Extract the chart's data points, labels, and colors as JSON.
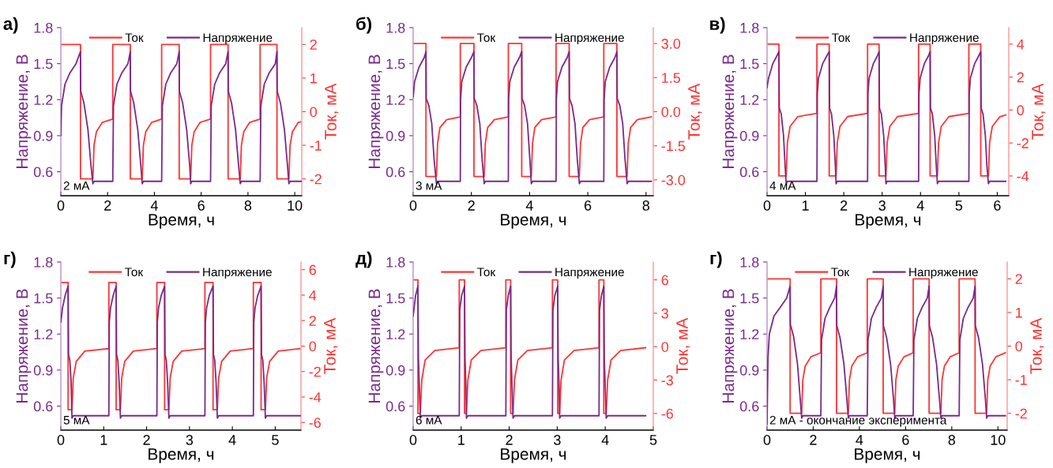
{
  "chart_data": [
    {
      "type": "line",
      "title": "а)",
      "xlabel": "Время, ч",
      "ylabel": "Напряжение, В",
      "y2label": "Ток, мА",
      "legend": "top",
      "annotations": [
        "2 мА"
      ],
      "xlim": [
        0,
        10.3
      ],
      "xticks": [
        0,
        2,
        4,
        6,
        8,
        10
      ],
      "ylim": [
        0.4,
        1.8
      ],
      "yticks": [
        0.6,
        0.9,
        1.2,
        1.5,
        1.8
      ],
      "y2lim": [
        -2.5,
        2.5
      ],
      "y2ticks": [
        -2,
        -1,
        0,
        1,
        2
      ],
      "series": [
        {
          "name": "Ток",
          "color": "#ff3333",
          "axis": "y2",
          "x": [
            0,
            0.84,
            0.84,
            1.37,
            1.42,
            1.52,
            1.77,
            2.22,
            2.22,
            2.97,
            2.97,
            3.48,
            3.53,
            3.63,
            3.88,
            4.31,
            4.31,
            5.06,
            5.06,
            5.55,
            5.6,
            5.7,
            5.95,
            6.4,
            6.4,
            7.15,
            7.15,
            7.67,
            7.72,
            7.82,
            8.07,
            8.52,
            8.52,
            9.24,
            9.24,
            9.75,
            9.8,
            9.9,
            10.15,
            10.28
          ],
          "values": [
            2,
            2,
            -2,
            -2,
            -1.0,
            -0.6,
            -0.32,
            -0.22,
            2,
            2,
            -2,
            -2,
            -1.0,
            -0.6,
            -0.32,
            -0.22,
            2,
            2,
            -2,
            -2,
            -1.0,
            -0.6,
            -0.32,
            -0.22,
            2,
            2,
            -2,
            -2,
            -1.0,
            -0.6,
            -0.32,
            -0.22,
            2,
            2,
            -2,
            -2,
            -1.0,
            -0.6,
            -0.32,
            -0.3
          ]
        },
        {
          "name": "Напряжение",
          "color": "#7a2a8a",
          "x": [
            0,
            0.03,
            0.18,
            0.38,
            0.65,
            0.84,
            0.85,
            0.99,
            1.16,
            1.29,
            1.37,
            1.42,
            2.22,
            2.25,
            2.4,
            2.6,
            2.87,
            2.97,
            2.98,
            3.12,
            3.29,
            3.42,
            3.48,
            3.53,
            4.31,
            4.34,
            4.49,
            4.69,
            4.96,
            5.06,
            5.07,
            5.21,
            5.38,
            5.51,
            5.55,
            5.6,
            6.4,
            6.43,
            6.58,
            6.78,
            7.05,
            7.15,
            7.16,
            7.3,
            7.47,
            7.6,
            7.67,
            7.72,
            8.52,
            8.55,
            8.7,
            8.9,
            9.17,
            9.24,
            9.25,
            9.39,
            9.56,
            9.69,
            9.75,
            9.8,
            10.28
          ],
          "values": [
            0.9,
            1.15,
            1.33,
            1.42,
            1.5,
            1.6,
            1.27,
            1.17,
            0.95,
            0.65,
            0.5,
            0.52,
            0.52,
            1.15,
            1.33,
            1.42,
            1.5,
            1.6,
            1.27,
            1.17,
            0.95,
            0.65,
            0.5,
            0.52,
            0.52,
            1.15,
            1.33,
            1.42,
            1.5,
            1.6,
            1.27,
            1.17,
            0.95,
            0.65,
            0.5,
            0.52,
            0.52,
            1.15,
            1.33,
            1.42,
            1.5,
            1.6,
            1.27,
            1.17,
            0.95,
            0.65,
            0.5,
            0.52,
            0.52,
            1.15,
            1.33,
            1.42,
            1.5,
            1.6,
            1.27,
            1.17,
            0.95,
            0.65,
            0.5,
            0.52,
            0.52
          ]
        }
      ]
    },
    {
      "type": "line",
      "title": "б)",
      "xlabel": "Время, ч",
      "ylabel": "Напряжение, В",
      "y2label": "Ток, мА",
      "legend": "top",
      "annotations": [
        "3 мА"
      ],
      "xlim": [
        0,
        8.25
      ],
      "xticks": [
        0,
        2,
        4,
        6,
        8
      ],
      "ylim": [
        0.4,
        1.8
      ],
      "yticks": [
        0.6,
        0.9,
        1.2,
        1.5,
        1.8
      ],
      "y2lim": [
        -3.7,
        3.7
      ],
      "y2ticks": [
        {
          "value": -3,
          "label": "-3.0"
        },
        {
          "value": -1.5,
          "label": "-1.5"
        },
        {
          "value": 0,
          "label": "0.0"
        },
        {
          "value": 1.5,
          "label": "1.5"
        },
        {
          "value": 3,
          "label": "3.0"
        }
      ],
      "series": [
        {
          "name": "Ток",
          "color": "#ff3333",
          "axis": "y2",
          "x": [
            0,
            0.44,
            0.44,
            0.8,
            0.84,
            0.92,
            1.15,
            1.62,
            1.62,
            2.09,
            2.09,
            2.44,
            2.48,
            2.56,
            2.79,
            3.27,
            3.27,
            3.73,
            3.73,
            4.06,
            4.1,
            4.18,
            4.41,
            4.91,
            4.91,
            5.36,
            5.36,
            5.71,
            5.75,
            5.83,
            6.06,
            6.55,
            6.55,
            7.0,
            7.0,
            7.35,
            7.39,
            7.47,
            7.7,
            8.18
          ],
          "values": [
            3.0,
            3.0,
            -2.85,
            -2.85,
            -1.4,
            -0.7,
            -0.35,
            -0.23,
            3.0,
            3.0,
            -2.85,
            -2.85,
            -1.4,
            -0.7,
            -0.35,
            -0.23,
            3.0,
            3.0,
            -2.85,
            -2.85,
            -1.4,
            -0.7,
            -0.35,
            -0.23,
            3.0,
            3.0,
            -2.85,
            -2.85,
            -1.4,
            -0.7,
            -0.35,
            -0.23,
            3.0,
            3.0,
            -2.85,
            -2.85,
            -1.4,
            -0.7,
            -0.35,
            -0.23
          ]
        },
        {
          "name": "Напряжение",
          "color": "#7a2a8a",
          "x": [
            0,
            0.05,
            0.2,
            0.38,
            0.44,
            0.45,
            0.54,
            0.64,
            0.72,
            0.8,
            0.84,
            1.62,
            1.63,
            1.67,
            1.82,
            2.0,
            2.09,
            2.1,
            2.19,
            2.29,
            2.37,
            2.44,
            2.48,
            3.27,
            3.28,
            3.32,
            3.47,
            3.65,
            3.73,
            3.74,
            3.83,
            3.93,
            4.01,
            4.06,
            4.1,
            4.91,
            4.92,
            4.96,
            5.11,
            5.29,
            5.36,
            5.37,
            5.46,
            5.56,
            5.64,
            5.71,
            5.75,
            6.55,
            6.56,
            6.6,
            6.75,
            6.93,
            7.0,
            7.01,
            7.1,
            7.2,
            7.28,
            7.35,
            7.39,
            8.18
          ],
          "values": [
            1.22,
            1.35,
            1.47,
            1.55,
            1.6,
            1.21,
            1.15,
            1.0,
            0.7,
            0.5,
            0.52,
            0.52,
            1.2,
            1.35,
            1.47,
            1.55,
            1.6,
            1.21,
            1.15,
            1.0,
            0.7,
            0.5,
            0.52,
            0.52,
            1.2,
            1.35,
            1.47,
            1.55,
            1.6,
            1.21,
            1.15,
            1.0,
            0.7,
            0.5,
            0.52,
            0.52,
            1.2,
            1.35,
            1.47,
            1.55,
            1.6,
            1.21,
            1.15,
            1.0,
            0.7,
            0.5,
            0.52,
            0.52,
            1.2,
            1.35,
            1.47,
            1.55,
            1.6,
            1.21,
            1.15,
            1.0,
            0.7,
            0.5,
            0.52,
            0.52
          ]
        }
      ]
    },
    {
      "type": "line",
      "title": "в)",
      "xlabel": "Время, ч",
      "ylabel": "Напряжение, В",
      "y2label": "Ток, мА",
      "legend": "top",
      "annotations": [
        "4 мА"
      ],
      "xlim": [
        0,
        6.3
      ],
      "xticks": [
        0,
        1,
        2,
        3,
        4,
        5,
        6
      ],
      "ylim": [
        0.4,
        1.8
      ],
      "yticks": [
        0.6,
        0.9,
        1.2,
        1.5,
        1.8
      ],
      "y2lim": [
        -5.2,
        5
      ],
      "y2ticks": [
        -4,
        -2,
        0,
        2,
        4
      ],
      "series": [
        {
          "name": "Ток",
          "color": "#ff3333",
          "axis": "y2",
          "x": [
            0,
            0.31,
            0.31,
            0.5,
            0.53,
            0.6,
            0.8,
            1.3,
            1.3,
            1.62,
            1.62,
            1.8,
            1.83,
            1.9,
            2.1,
            2.62,
            2.62,
            2.92,
            2.92,
            3.1,
            3.13,
            3.2,
            3.4,
            3.95,
            3.95,
            4.25,
            4.25,
            4.44,
            4.47,
            4.54,
            4.74,
            5.26,
            5.26,
            5.57,
            5.57,
            5.77,
            5.8,
            5.87,
            6.07,
            6.22
          ],
          "values": [
            4,
            4,
            -4,
            -4,
            -2.0,
            -1.0,
            -0.4,
            -0.2,
            4,
            4,
            -4,
            -4,
            -2.0,
            -1.0,
            -0.4,
            -0.2,
            4,
            4,
            -4,
            -4,
            -2.0,
            -1.0,
            -0.4,
            -0.2,
            4,
            4,
            -4,
            -4,
            -2.0,
            -1.0,
            -0.4,
            -0.2,
            4,
            4,
            -4,
            -4,
            -2.0,
            -1.0,
            -0.4,
            -0.3
          ]
        },
        {
          "name": "Напряжение",
          "color": "#7a2a8a",
          "x": [
            0,
            0.04,
            0.15,
            0.25,
            0.31,
            0.32,
            0.37,
            0.43,
            0.47,
            0.5,
            0.53,
            1.3,
            1.31,
            1.34,
            1.45,
            1.55,
            1.62,
            1.63,
            1.68,
            1.74,
            1.78,
            1.8,
            1.83,
            2.62,
            2.63,
            2.66,
            2.77,
            2.87,
            2.92,
            2.93,
            2.98,
            3.04,
            3.08,
            3.1,
            3.13,
            3.95,
            3.96,
            3.99,
            4.1,
            4.2,
            4.25,
            4.26,
            4.31,
            4.37,
            4.41,
            4.44,
            4.47,
            5.26,
            5.27,
            5.3,
            5.41,
            5.51,
            5.57,
            5.58,
            5.63,
            5.69,
            5.73,
            5.77,
            5.8,
            6.22
          ],
          "values": [
            1.3,
            1.38,
            1.5,
            1.56,
            1.6,
            1.13,
            1.08,
            0.9,
            0.65,
            0.5,
            0.52,
            0.52,
            1.25,
            1.38,
            1.5,
            1.56,
            1.6,
            1.13,
            1.08,
            0.9,
            0.65,
            0.5,
            0.52,
            0.52,
            1.25,
            1.38,
            1.5,
            1.56,
            1.6,
            1.13,
            1.08,
            0.9,
            0.65,
            0.5,
            0.52,
            0.52,
            1.25,
            1.38,
            1.5,
            1.56,
            1.6,
            1.13,
            1.08,
            0.9,
            0.65,
            0.5,
            0.52,
            0.52,
            1.25,
            1.38,
            1.5,
            1.56,
            1.6,
            1.13,
            1.08,
            0.9,
            0.65,
            0.5,
            0.52,
            0.52
          ]
        }
      ]
    },
    {
      "type": "line",
      "title": "г)",
      "xlabel": "Время, ч",
      "ylabel": "Напряжение, В",
      "y2label": "Ток, мА",
      "legend": "top",
      "annotations": [
        "5 мА"
      ],
      "xlim": [
        0,
        5.6
      ],
      "xticks": [
        0,
        1,
        2,
        3,
        4,
        5
      ],
      "ylim": [
        0.4,
        1.8
      ],
      "yticks": [
        0.6,
        0.9,
        1.2,
        1.5,
        1.8
      ],
      "y2lim": [
        -6.6,
        6.6
      ],
      "y2ticks": [
        -6,
        -4,
        -2,
        0,
        2,
        4,
        6
      ],
      "series": [
        {
          "name": "Ток",
          "color": "#ff3333",
          "axis": "y2",
          "x": [
            0,
            0.17,
            0.17,
            0.26,
            0.29,
            0.36,
            0.56,
            1.12,
            1.12,
            1.29,
            1.29,
            1.39,
            1.42,
            1.49,
            1.69,
            2.24,
            2.24,
            2.42,
            2.42,
            2.52,
            2.55,
            2.62,
            2.82,
            3.36,
            3.36,
            3.55,
            3.55,
            3.65,
            3.68,
            3.75,
            3.95,
            4.49,
            4.49,
            4.67,
            4.67,
            4.77,
            4.8,
            4.87,
            5.07,
            5.58
          ],
          "values": [
            5,
            5,
            -5,
            -5,
            -2.5,
            -1.2,
            -0.4,
            -0.2,
            5,
            5,
            -5,
            -5,
            -2.5,
            -1.2,
            -0.4,
            -0.2,
            5,
            5,
            -5,
            -5,
            -2.5,
            -1.2,
            -0.4,
            -0.2,
            5,
            5,
            -5,
            -5,
            -2.5,
            -1.2,
            -0.4,
            -0.2,
            5,
            5,
            -5,
            -5,
            -2.5,
            -1.2,
            -0.4,
            -0.2
          ]
        },
        {
          "name": "Напряжение",
          "color": "#7a2a8a",
          "x": [
            0,
            0.04,
            0.1,
            0.17,
            0.18,
            0.21,
            0.24,
            0.26,
            0.29,
            1.12,
            1.13,
            1.16,
            1.22,
            1.29,
            1.3,
            1.33,
            1.36,
            1.39,
            1.42,
            2.24,
            2.25,
            2.28,
            2.34,
            2.42,
            2.43,
            2.46,
            2.49,
            2.52,
            2.55,
            3.36,
            3.37,
            3.4,
            3.46,
            3.55,
            3.56,
            3.59,
            3.62,
            3.65,
            3.68,
            4.49,
            4.5,
            4.53,
            4.59,
            4.67,
            4.68,
            4.71,
            4.74,
            4.77,
            4.8,
            5.58
          ],
          "values": [
            1.3,
            1.42,
            1.52,
            1.6,
            1.03,
            0.98,
            0.8,
            0.5,
            0.52,
            0.52,
            1.3,
            1.42,
            1.52,
            1.6,
            1.03,
            0.98,
            0.8,
            0.5,
            0.52,
            0.52,
            1.3,
            1.42,
            1.52,
            1.6,
            1.03,
            0.98,
            0.8,
            0.5,
            0.52,
            0.52,
            1.3,
            1.42,
            1.52,
            1.6,
            1.03,
            0.98,
            0.8,
            0.5,
            0.52,
            0.52,
            1.3,
            1.42,
            1.52,
            1.6,
            1.03,
            0.98,
            0.8,
            0.5,
            0.52,
            0.52
          ]
        }
      ]
    },
    {
      "type": "line",
      "title": "д)",
      "xlabel": "Время, ч",
      "ylabel": "Напряжение, В",
      "y2label": "Ток, мА",
      "legend": "top",
      "annotations": [
        "6 мА"
      ],
      "xlim": [
        0,
        5
      ],
      "xticks": [
        0,
        1,
        2,
        3,
        4,
        5
      ],
      "ylim": [
        0.4,
        1.8
      ],
      "yticks": [
        0.6,
        0.9,
        1.2,
        1.5,
        1.8
      ],
      "y2lim": [
        -7.5,
        7.6
      ],
      "y2ticks": [
        -6,
        -3,
        0,
        3,
        6
      ],
      "series": [
        {
          "name": "Ток",
          "color": "#ff3333",
          "axis": "y2",
          "x": [
            0,
            0.1,
            0.1,
            0.15,
            0.18,
            0.25,
            0.45,
            0.96,
            0.96,
            1.07,
            1.07,
            1.11,
            1.14,
            1.21,
            1.41,
            1.93,
            1.93,
            2.03,
            2.03,
            2.08,
            2.11,
            2.18,
            2.38,
            2.9,
            2.9,
            3.01,
            3.01,
            3.05,
            3.08,
            3.15,
            3.35,
            3.87,
            3.87,
            3.97,
            3.97,
            4.02,
            4.05,
            4.12,
            4.32,
            4.84
          ],
          "values": [
            6,
            6,
            -6,
            -6,
            -3.0,
            -1.2,
            -0.35,
            -0.1,
            6,
            6,
            -6,
            -6,
            -3.0,
            -1.2,
            -0.35,
            -0.1,
            6,
            6,
            -6,
            -6,
            -3.0,
            -1.2,
            -0.35,
            -0.1,
            6,
            6,
            -6,
            -6,
            -3.0,
            -1.2,
            -0.35,
            -0.1,
            6,
            6,
            -6,
            -6,
            -3.0,
            -1.2,
            -0.35,
            -0.1
          ]
        },
        {
          "name": "Напряжение",
          "color": "#7a2a8a",
          "x": [
            0,
            0.05,
            0.1,
            0.11,
            0.13,
            0.15,
            0.18,
            0.96,
            0.97,
            1.01,
            1.07,
            1.08,
            1.1,
            1.11,
            1.14,
            1.93,
            1.94,
            1.98,
            2.03,
            2.04,
            2.06,
            2.08,
            2.11,
            2.9,
            2.91,
            2.95,
            3.01,
            3.02,
            3.04,
            3.05,
            3.08,
            3.87,
            3.88,
            3.92,
            3.97,
            3.98,
            4.0,
            4.02,
            4.05,
            4.84
          ],
          "values": [
            1.35,
            1.52,
            1.6,
            1.0,
            0.75,
            0.5,
            0.52,
            0.52,
            1.4,
            1.52,
            1.6,
            1.0,
            0.75,
            0.5,
            0.52,
            0.52,
            1.4,
            1.52,
            1.6,
            1.0,
            0.75,
            0.5,
            0.52,
            0.52,
            1.4,
            1.52,
            1.6,
            1.0,
            0.75,
            0.5,
            0.52,
            0.52,
            1.4,
            1.52,
            1.6,
            1.0,
            0.75,
            0.5,
            0.52,
            0.52
          ]
        }
      ]
    },
    {
      "type": "line",
      "title": "г)",
      "xlabel": "Время, ч",
      "ylabel": "Напряжение, В",
      "y2label": "Ток, мА",
      "legend": "top",
      "annotations": [
        "2 мА - окончание эксперимента"
      ],
      "xlim": [
        0,
        10.4
      ],
      "xticks": [
        0,
        2,
        4,
        6,
        8,
        10
      ],
      "ylim": [
        0.4,
        1.8
      ],
      "yticks": [
        0.6,
        0.9,
        1.2,
        1.5,
        1.8
      ],
      "y2lim": [
        -2.5,
        2.5
      ],
      "y2ticks": [
        -2,
        -1,
        0,
        1,
        2
      ],
      "series": [
        {
          "name": "Ток",
          "color": "#ff3333",
          "axis": "y2",
          "x": [
            0,
            1.0,
            1.0,
            1.5,
            1.55,
            1.65,
            1.9,
            2.33,
            2.33,
            3.01,
            3.01,
            3.52,
            3.57,
            3.67,
            3.92,
            4.34,
            4.34,
            5.03,
            5.03,
            5.53,
            5.58,
            5.68,
            5.93,
            6.33,
            6.33,
            7.02,
            7.02,
            7.53,
            7.58,
            7.68,
            7.93,
            8.32,
            8.32,
            9.01,
            9.01,
            9.51,
            9.56,
            9.66,
            9.91,
            10.32
          ],
          "values": [
            2,
            2,
            -2,
            -2,
            -1.0,
            -0.6,
            -0.32,
            -0.2,
            2,
            2,
            -2,
            -2,
            -1.0,
            -0.6,
            -0.32,
            -0.2,
            2,
            2,
            -2,
            -2,
            -1.0,
            -0.6,
            -0.32,
            -0.2,
            2,
            2,
            -2,
            -2,
            -1.0,
            -0.6,
            -0.32,
            -0.2,
            2,
            2,
            -2,
            -2,
            -1.0,
            -0.6,
            -0.32,
            -0.2
          ]
        },
        {
          "name": "Напряжение",
          "color": "#7a2a8a",
          "x": [
            0,
            0.04,
            0.1,
            0.3,
            0.6,
            0.85,
            1.0,
            1.01,
            1.15,
            1.32,
            1.44,
            1.5,
            1.55,
            2.33,
            2.36,
            2.51,
            2.71,
            2.93,
            3.01,
            3.02,
            3.16,
            3.33,
            3.46,
            3.52,
            3.57,
            4.34,
            4.37,
            4.52,
            4.72,
            4.95,
            5.03,
            5.04,
            5.18,
            5.35,
            5.48,
            5.53,
            5.58,
            6.33,
            6.36,
            6.51,
            6.71,
            6.94,
            7.02,
            7.03,
            7.17,
            7.34,
            7.47,
            7.53,
            7.58,
            8.32,
            8.35,
            8.5,
            8.7,
            8.93,
            9.01,
            9.02,
            9.16,
            9.33,
            9.46,
            9.51,
            9.56,
            10.32
          ],
          "values": [
            0.45,
            1.0,
            1.2,
            1.35,
            1.43,
            1.5,
            1.6,
            1.28,
            1.18,
            0.95,
            0.65,
            0.5,
            0.52,
            0.52,
            1.15,
            1.33,
            1.42,
            1.5,
            1.6,
            1.27,
            1.17,
            0.95,
            0.65,
            0.5,
            0.52,
            0.52,
            1.15,
            1.33,
            1.42,
            1.5,
            1.6,
            1.27,
            1.17,
            0.95,
            0.65,
            0.5,
            0.52,
            0.52,
            1.15,
            1.33,
            1.42,
            1.5,
            1.6,
            1.27,
            1.17,
            0.95,
            0.65,
            0.5,
            0.52,
            0.52,
            1.15,
            1.33,
            1.42,
            1.5,
            1.6,
            1.27,
            1.17,
            0.95,
            0.65,
            0.5,
            0.52,
            0.52
          ]
        }
      ]
    }
  ]
}
